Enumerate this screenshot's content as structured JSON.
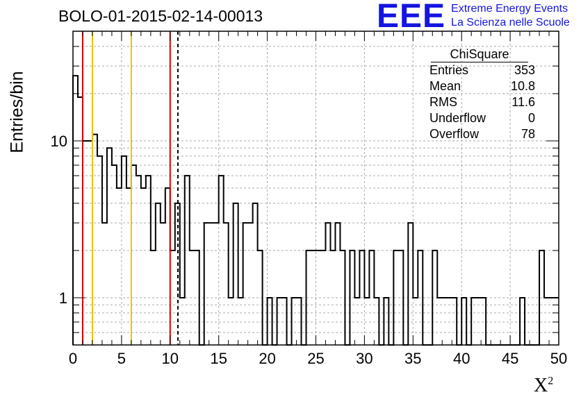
{
  "title": "BOLO-01-2015-02-14-00013",
  "logo": {
    "mark": "EEE",
    "line1": "Extreme Energy Events",
    "line2": "La Scienza nelle Scuole",
    "color": "#1515e0"
  },
  "chart_data": {
    "type": "bar",
    "histtype": "step",
    "title": "BOLO-01-2015-02-14-00013",
    "xlabel": "X",
    "xlabel_sup": "2",
    "ylabel": "Entries/bin",
    "xlim": [
      0,
      50
    ],
    "ylim": [
      0.5,
      50
    ],
    "yscale": "log",
    "grid": true,
    "bin_width": 0.5,
    "x_ticks": [
      "0",
      "5",
      "10",
      "15",
      "20",
      "25",
      "30",
      "35",
      "40",
      "45",
      "50"
    ],
    "y_ticks": [
      "1",
      "10"
    ],
    "values": [
      26,
      19,
      10,
      10,
      11,
      8,
      3,
      9,
      7,
      5,
      8,
      5,
      7,
      6,
      5,
      6,
      2,
      4,
      3,
      5,
      2,
      4,
      1,
      6,
      2,
      2,
      0,
      3,
      3,
      3,
      6,
      3,
      1,
      4,
      1,
      3,
      3,
      4,
      2,
      0,
      1,
      0,
      1,
      1,
      0,
      1,
      1,
      0,
      2,
      2,
      2,
      2,
      3,
      2,
      3,
      2,
      0,
      2,
      1,
      2,
      1,
      2,
      1,
      0,
      1,
      0,
      2,
      2,
      0,
      3,
      1,
      2,
      0,
      0,
      2,
      1,
      1,
      1,
      1,
      0,
      1,
      0,
      1,
      1,
      1,
      0,
      0,
      0,
      0,
      0,
      0,
      0,
      1,
      0,
      0,
      0,
      2,
      1
    ],
    "vertical_lines": [
      {
        "x": 1,
        "color": "#e00000",
        "style": "solid"
      },
      {
        "x": 2,
        "color": "#f5c000",
        "style": "solid"
      },
      {
        "x": 6,
        "color": "#f5c000",
        "style": "solid"
      },
      {
        "x": 10,
        "color": "#e00000",
        "style": "solid"
      },
      {
        "x": 10.8,
        "color": "#000000",
        "style": "dashed"
      }
    ],
    "stats": {
      "name": "ChiSquare",
      "rows": [
        {
          "label": "Entries",
          "value": "353"
        },
        {
          "label": "Mean",
          "value": "10.8"
        },
        {
          "label": "RMS",
          "value": "11.6"
        },
        {
          "label": "Underflow",
          "value": "0"
        },
        {
          "label": "Overflow",
          "value": "78"
        }
      ]
    }
  }
}
